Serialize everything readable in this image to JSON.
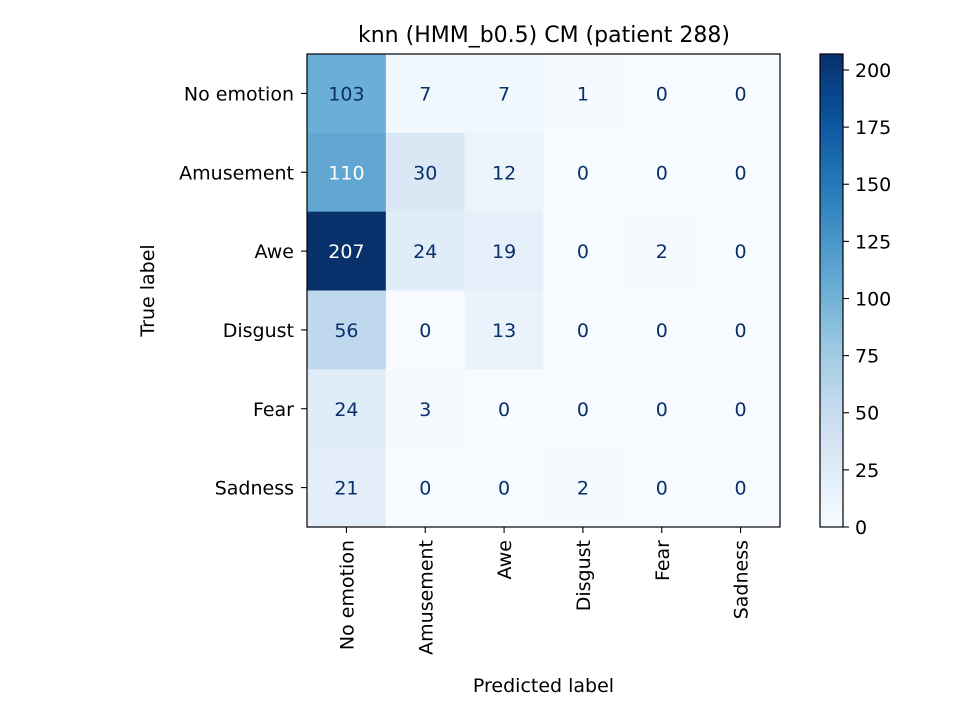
{
  "chart_data": {
    "type": "heatmap",
    "title": "knn (HMM_b0.5) CM (patient 288)",
    "xlabel": "Predicted label",
    "ylabel": "True label",
    "x_categories": [
      "No emotion",
      "Amusement",
      "Awe",
      "Disgust",
      "Fear",
      "Sadness"
    ],
    "y_categories": [
      "No emotion",
      "Amusement",
      "Awe",
      "Disgust",
      "Fear",
      "Sadness"
    ],
    "values": [
      [
        103,
        7,
        7,
        1,
        0,
        0
      ],
      [
        110,
        30,
        12,
        0,
        0,
        0
      ],
      [
        207,
        24,
        19,
        0,
        2,
        0
      ],
      [
        56,
        0,
        13,
        0,
        0,
        0
      ],
      [
        24,
        3,
        0,
        0,
        0,
        0
      ],
      [
        21,
        0,
        0,
        2,
        0,
        0
      ]
    ],
    "colormap": "Blues",
    "vmin": 0,
    "vmax": 207,
    "colorbar_ticks": [
      0,
      25,
      50,
      75,
      100,
      125,
      150,
      175,
      200
    ],
    "grid": false,
    "text_color_light": "#ffffff",
    "text_color_dark": "#08306b"
  }
}
